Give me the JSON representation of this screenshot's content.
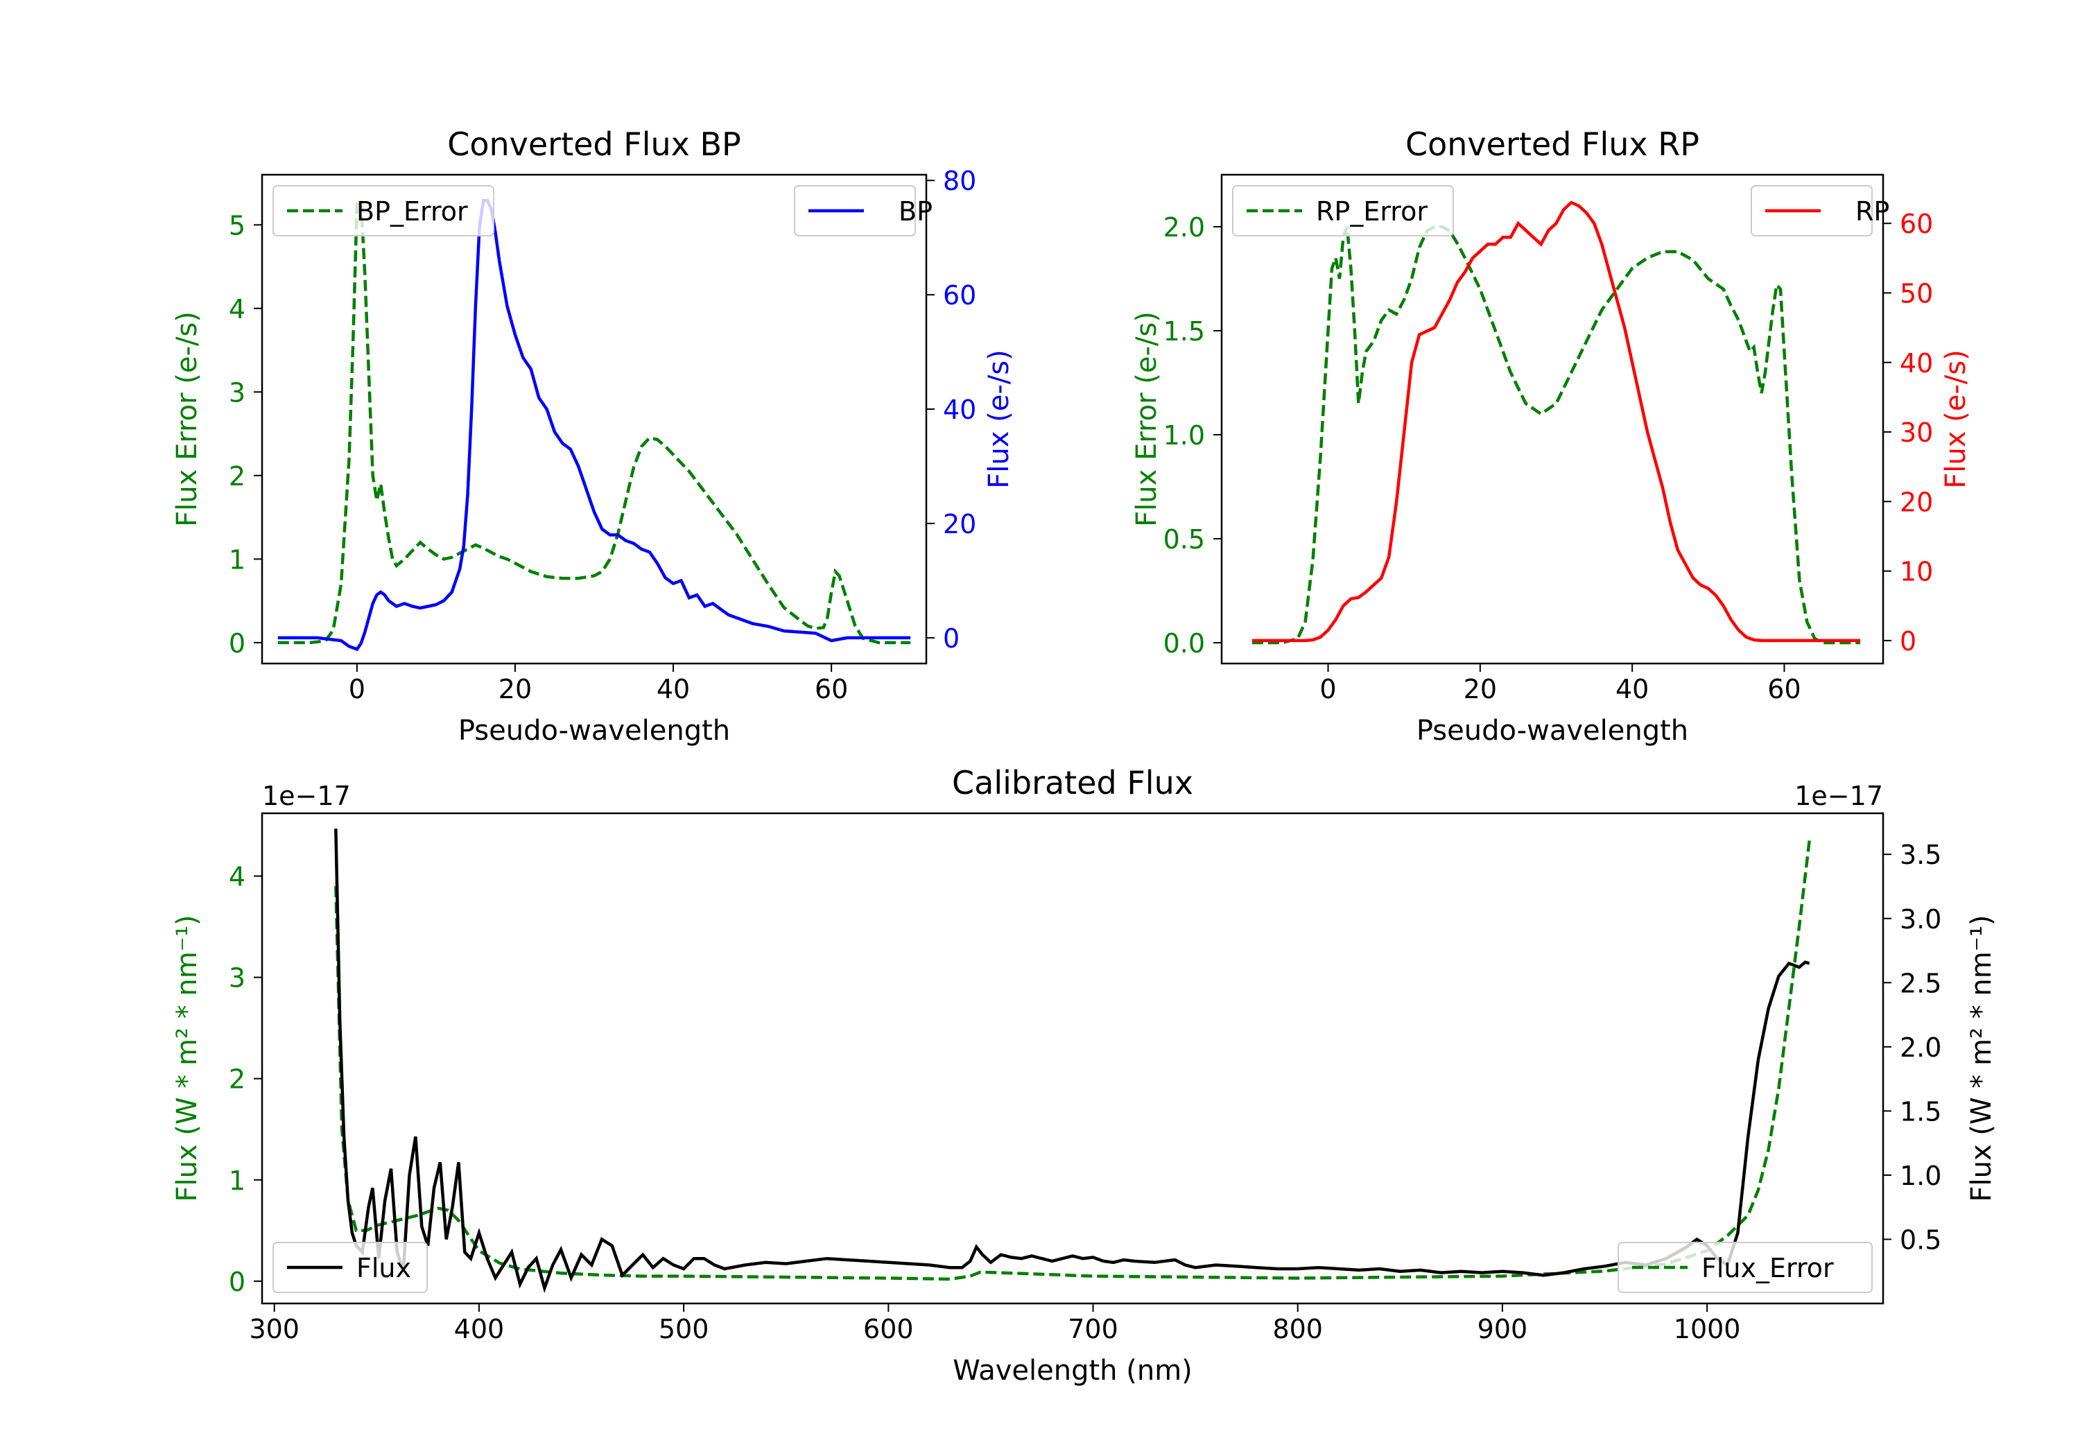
{
  "colors": {
    "bp": "#0000ff",
    "rp": "#ff0000",
    "error": "#008000",
    "flux": "#000000",
    "axis": "#000000"
  },
  "chart_data": [
    {
      "id": "bp",
      "type": "line",
      "title": "Converted Flux BP",
      "xlabel": "Pseudo-wavelength",
      "ylabel_left": "Flux Error (e-/s)",
      "ylabel_right": "Flux (e-/s)",
      "xlim": [
        -12,
        72
      ],
      "ylim_left": [
        -0.25,
        5.6
      ],
      "ylim_right": [
        -4.5,
        81
      ],
      "xticks": [
        0,
        20,
        40,
        60
      ],
      "yticks_left": [
        0,
        1,
        2,
        3,
        4,
        5
      ],
      "yticks_right": [
        0,
        20,
        40,
        60,
        80
      ],
      "legend_left": "BP_Error",
      "legend_right": "BP",
      "error_series": {
        "name": "BP_Error",
        "x": [
          -10,
          -6,
          -4,
          -3,
          -2,
          -1,
          -0.5,
          0,
          0.5,
          1,
          1.5,
          2,
          2.5,
          3,
          3.5,
          4,
          4.5,
          5,
          6,
          7,
          8,
          9,
          10,
          11,
          12,
          13,
          14,
          15,
          16,
          17,
          18,
          19,
          20,
          22,
          24,
          26,
          28,
          30,
          31,
          32,
          33,
          34,
          35,
          36,
          37,
          38,
          39,
          40,
          41,
          42,
          44,
          46,
          48,
          50,
          52,
          54,
          56,
          57,
          58,
          59,
          59.5,
          60,
          60.5,
          61,
          62,
          63,
          64,
          66,
          70
        ],
        "values": [
          0,
          0,
          0.02,
          0.15,
          0.7,
          2.2,
          3.6,
          5.25,
          5.3,
          4.4,
          3.2,
          2.0,
          1.7,
          1.9,
          1.55,
          1.25,
          1.0,
          0.92,
          1.0,
          1.1,
          1.2,
          1.12,
          1.05,
          1.0,
          1.02,
          1.07,
          1.12,
          1.17,
          1.13,
          1.08,
          1.03,
          1.0,
          0.95,
          0.85,
          0.79,
          0.77,
          0.77,
          0.8,
          0.85,
          1.0,
          1.3,
          1.7,
          2.1,
          2.35,
          2.45,
          2.43,
          2.35,
          2.25,
          2.15,
          2.05,
          1.8,
          1.55,
          1.3,
          1.0,
          0.7,
          0.42,
          0.27,
          0.2,
          0.17,
          0.18,
          0.3,
          0.6,
          0.85,
          0.8,
          0.5,
          0.2,
          0.05,
          0,
          0
        ]
      },
      "flux_series": {
        "name": "BP",
        "x": [
          -10,
          -5,
          -2,
          -1,
          0,
          0.5,
          1,
          1.5,
          2,
          2.5,
          3,
          3.5,
          4,
          5,
          6,
          7,
          8,
          9,
          10,
          11,
          12,
          12.5,
          13,
          13.5,
          14,
          14.5,
          15,
          15.5,
          16,
          16.5,
          17,
          17.5,
          18,
          18.5,
          19,
          20,
          21,
          22,
          23,
          24,
          25,
          26,
          27,
          28,
          29,
          30,
          31,
          32,
          33,
          34,
          35,
          36,
          37,
          38,
          39,
          40,
          41,
          42,
          43,
          44,
          45,
          46,
          47,
          48,
          50,
          52,
          54,
          56,
          58,
          60,
          62,
          64,
          70
        ],
        "values": [
          0,
          0,
          -0.5,
          -1.5,
          -2,
          -1,
          1,
          3.5,
          6,
          7.5,
          8,
          7.5,
          6.5,
          5.5,
          6,
          5.5,
          5.2,
          5.5,
          5.8,
          6.5,
          8,
          10,
          12,
          16,
          25,
          40,
          58,
          72,
          76.5,
          76.5,
          75,
          71,
          66,
          62,
          58,
          53,
          49,
          47,
          42,
          40,
          36,
          34,
          33,
          30,
          26,
          22,
          19,
          18,
          18,
          17,
          16.5,
          15.5,
          15,
          13,
          10.5,
          9.5,
          10,
          7,
          7.5,
          5.5,
          6,
          5,
          4,
          3.5,
          2.5,
          2,
          1.2,
          1,
          0.8,
          -0.5,
          0,
          0,
          0
        ]
      }
    },
    {
      "id": "rp",
      "type": "line",
      "title": "Converted Flux RP",
      "xlabel": "Pseudo-wavelength",
      "ylabel_left": "Flux Error (e-/s)",
      "ylabel_right": "Flux (e-/s)",
      "xlim": [
        -14,
        73
      ],
      "ylim_left": [
        -0.1,
        2.25
      ],
      "ylim_right": [
        -3.3,
        67
      ],
      "xticks": [
        0,
        20,
        40,
        60
      ],
      "yticks_left": [
        0.0,
        0.5,
        1.0,
        1.5,
        2.0
      ],
      "yticks_right": [
        0,
        10,
        20,
        30,
        40,
        50,
        60
      ],
      "legend_left": "RP_Error",
      "legend_right": "RP",
      "error_series": {
        "name": "RP_Error",
        "x": [
          -10,
          -6,
          -4,
          -3,
          -2,
          -1,
          0,
          0.5,
          1,
          1.5,
          2,
          2.5,
          3,
          3.5,
          4,
          4.5,
          5,
          6,
          7,
          8,
          9,
          10,
          11,
          12,
          13,
          14,
          15,
          16,
          17,
          18,
          20,
          22,
          24,
          26,
          28,
          30,
          32,
          34,
          36,
          38,
          40,
          42,
          44,
          46,
          48,
          50,
          52,
          53,
          54,
          55,
          55.5,
          56,
          56.5,
          57,
          57.5,
          58,
          58.5,
          59,
          59.5,
          60,
          61,
          62,
          63,
          64,
          65,
          66,
          70
        ],
        "values": [
          0,
          0,
          0.02,
          0.1,
          0.4,
          0.9,
          1.5,
          1.8,
          1.85,
          1.75,
          1.95,
          2.0,
          1.8,
          1.5,
          1.15,
          1.3,
          1.4,
          1.45,
          1.55,
          1.6,
          1.58,
          1.65,
          1.75,
          1.9,
          1.98,
          2.0,
          2.0,
          1.98,
          1.92,
          1.85,
          1.7,
          1.5,
          1.3,
          1.15,
          1.1,
          1.15,
          1.3,
          1.45,
          1.6,
          1.7,
          1.8,
          1.85,
          1.88,
          1.88,
          1.84,
          1.75,
          1.7,
          1.62,
          1.55,
          1.45,
          1.4,
          1.42,
          1.3,
          1.2,
          1.3,
          1.45,
          1.6,
          1.72,
          1.7,
          1.4,
          0.8,
          0.3,
          0.1,
          0.02,
          0,
          0,
          0
        ]
      },
      "flux_series": {
        "name": "RP",
        "x": [
          -10,
          -6,
          -3,
          -2,
          -1,
          0,
          1,
          2,
          3,
          4,
          5,
          6,
          7,
          8,
          9,
          10,
          11,
          12,
          13,
          14,
          15,
          16,
          17,
          18,
          19,
          20,
          21,
          22,
          23,
          24,
          25,
          26,
          27,
          28,
          29,
          30,
          31,
          32,
          33,
          34,
          35,
          36,
          37,
          38,
          39,
          40,
          41,
          42,
          43,
          44,
          45,
          46,
          47,
          48,
          49,
          50,
          51,
          52,
          53,
          54,
          55,
          56,
          57,
          58,
          59,
          60,
          61,
          62,
          63,
          64,
          65,
          70
        ],
        "values": [
          0,
          0,
          0,
          0.1,
          0.5,
          1.5,
          3,
          5,
          6,
          6.2,
          7,
          8,
          9,
          12,
          20,
          30,
          40,
          44,
          44.5,
          45,
          47,
          49,
          51.5,
          53,
          55,
          56,
          57,
          57,
          58,
          58,
          60,
          59,
          58,
          57,
          59,
          60,
          62,
          63,
          62.5,
          61.5,
          60,
          57,
          53,
          49,
          45,
          40,
          35,
          30,
          26,
          22,
          17,
          13,
          11,
          9,
          8,
          7.5,
          6.5,
          5,
          3,
          1.5,
          0.5,
          0.1,
          0,
          0,
          0,
          0,
          0,
          0,
          0,
          0,
          0,
          0
        ]
      }
    },
    {
      "id": "cal",
      "type": "line",
      "title": "Calibrated Flux",
      "xlabel": "Wavelength (nm)",
      "ylabel_left": "Flux (W * m² * nm⁻¹)",
      "ylabel_right": "Flux (W * m² * nm⁻¹)",
      "offset_left": "1e−17",
      "offset_right": "1e−17",
      "xlim": [
        294,
        1086
      ],
      "ylim_left": [
        -0.22,
        4.62
      ],
      "ylim_right": [
        -0.0,
        3.82
      ],
      "xticks": [
        300,
        400,
        500,
        600,
        700,
        800,
        900,
        1000
      ],
      "yticks_left": [
        0,
        1,
        2,
        3,
        4
      ],
      "yticks_right": [
        0.5,
        1.0,
        1.5,
        2.0,
        2.5,
        3.0,
        3.5
      ],
      "legend_left": "Flux",
      "legend_right": "Flux_Error",
      "error_series": {
        "name": "Flux_Error",
        "x": [
          330,
          333,
          336,
          340,
          345,
          350,
          360,
          370,
          380,
          385,
          390,
          395,
          400,
          410,
          420,
          440,
          460,
          480,
          500,
          550,
          600,
          630,
          640,
          645,
          660,
          700,
          750,
          800,
          850,
          900,
          950,
          980,
          1000,
          1010,
          1020,
          1025,
          1030,
          1035,
          1040,
          1045,
          1050
        ],
        "values": [
          3.9,
          1.5,
          0.8,
          0.5,
          0.5,
          0.55,
          0.6,
          0.65,
          0.72,
          0.7,
          0.6,
          0.45,
          0.3,
          0.18,
          0.12,
          0.08,
          0.06,
          0.05,
          0.05,
          0.04,
          0.03,
          0.02,
          0.05,
          0.09,
          0.08,
          0.05,
          0.04,
          0.03,
          0.04,
          0.05,
          0.1,
          0.17,
          0.3,
          0.45,
          0.65,
          0.9,
          1.3,
          1.9,
          2.7,
          3.5,
          4.35
        ]
      },
      "flux_series": {
        "name": "Flux",
        "x": [
          330,
          332,
          334,
          336,
          338,
          340,
          343,
          346,
          348,
          351,
          354,
          357,
          360,
          363,
          366,
          369,
          372,
          375,
          378,
          381,
          384,
          387,
          390,
          393,
          396,
          400,
          404,
          408,
          412,
          416,
          420,
          424,
          428,
          432,
          436,
          440,
          445,
          450,
          455,
          460,
          465,
          470,
          475,
          480,
          485,
          490,
          495,
          500,
          505,
          510,
          515,
          520,
          530,
          540,
          550,
          560,
          570,
          580,
          590,
          600,
          610,
          620,
          630,
          636,
          640,
          643,
          646,
          650,
          655,
          660,
          665,
          670,
          675,
          680,
          685,
          690,
          695,
          700,
          705,
          710,
          715,
          720,
          730,
          740,
          745,
          750,
          760,
          770,
          780,
          790,
          800,
          810,
          820,
          830,
          840,
          850,
          860,
          870,
          880,
          890,
          900,
          910,
          920,
          930,
          940,
          950,
          960,
          970,
          980,
          990,
          995,
          1000,
          1005,
          1010,
          1015,
          1020,
          1025,
          1030,
          1035,
          1040,
          1045,
          1048,
          1050
        ],
        "values": [
          3.7,
          2.2,
          1.3,
          0.8,
          0.55,
          0.45,
          0.4,
          0.75,
          0.9,
          0.35,
          0.8,
          1.05,
          0.4,
          0.25,
          1.0,
          1.3,
          0.6,
          0.45,
          0.9,
          1.1,
          0.5,
          0.75,
          1.1,
          0.4,
          0.35,
          0.55,
          0.35,
          0.2,
          0.3,
          0.4,
          0.15,
          0.28,
          0.35,
          0.12,
          0.3,
          0.42,
          0.2,
          0.38,
          0.3,
          0.5,
          0.45,
          0.22,
          0.3,
          0.38,
          0.28,
          0.35,
          0.3,
          0.27,
          0.35,
          0.35,
          0.3,
          0.27,
          0.3,
          0.32,
          0.31,
          0.33,
          0.35,
          0.34,
          0.33,
          0.32,
          0.31,
          0.3,
          0.28,
          0.28,
          0.33,
          0.44,
          0.38,
          0.32,
          0.38,
          0.36,
          0.35,
          0.37,
          0.35,
          0.33,
          0.35,
          0.37,
          0.35,
          0.36,
          0.33,
          0.32,
          0.34,
          0.33,
          0.32,
          0.34,
          0.3,
          0.28,
          0.3,
          0.29,
          0.28,
          0.27,
          0.27,
          0.28,
          0.27,
          0.26,
          0.27,
          0.25,
          0.26,
          0.24,
          0.25,
          0.24,
          0.25,
          0.24,
          0.22,
          0.24,
          0.27,
          0.29,
          0.32,
          0.3,
          0.35,
          0.44,
          0.5,
          0.45,
          0.35,
          0.3,
          0.55,
          1.3,
          1.9,
          2.3,
          2.55,
          2.65,
          2.62,
          2.66,
          2.65
        ]
      }
    }
  ]
}
